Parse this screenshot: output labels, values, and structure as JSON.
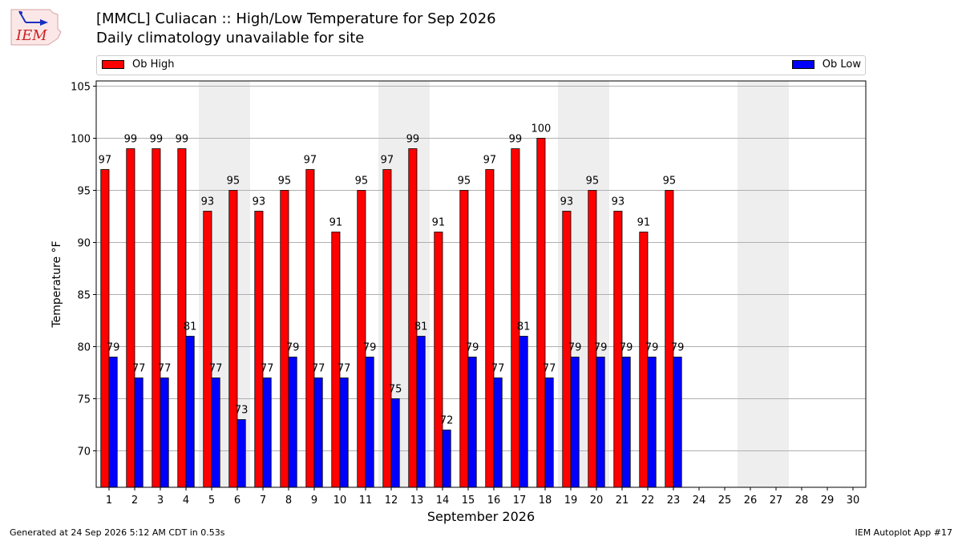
{
  "logo_text": "IEM",
  "title_line1": "[MMCL] Culiacan :: High/Low Temperature for Sep 2026",
  "title_line2": "Daily climatology unavailable for site",
  "footer_left": "Generated at 24 Sep 2026 5:12 AM CDT in 0.53s",
  "footer_right": "IEM Autoplot App #17",
  "colors": {
    "high": "#ff0000",
    "low": "#0000ff",
    "weekend": "#eeeeee",
    "grid": "#b0b0b0"
  },
  "chart_data": {
    "type": "bar",
    "xlabel": "September 2026",
    "ylabel": "Temperature °F",
    "ylim": [
      66.5,
      105.5
    ],
    "yticks": [
      70,
      75,
      80,
      85,
      90,
      95,
      100,
      105
    ],
    "categories": [
      "1",
      "2",
      "3",
      "4",
      "5",
      "6",
      "7",
      "8",
      "9",
      "10",
      "11",
      "12",
      "13",
      "14",
      "15",
      "16",
      "17",
      "18",
      "19",
      "20",
      "21",
      "22",
      "23",
      "24",
      "25",
      "26",
      "27",
      "28",
      "29",
      "30"
    ],
    "shaded_days": [
      [
        "5",
        "6"
      ],
      [
        "12",
        "13"
      ],
      [
        "19",
        "20"
      ],
      [
        "26",
        "27"
      ]
    ],
    "legend_position": "top",
    "grid": "horizontal",
    "series": [
      {
        "name": "Ob High",
        "color": "#ff0000",
        "values": [
          97,
          99,
          99,
          99,
          93,
          95,
          93,
          95,
          97,
          91,
          95,
          97,
          99,
          91,
          95,
          97,
          99,
          100,
          93,
          95,
          93,
          91,
          95,
          null,
          null,
          null,
          null,
          null,
          null,
          null
        ]
      },
      {
        "name": "Ob Low",
        "color": "#0000ff",
        "values": [
          79,
          77,
          77,
          81,
          77,
          73,
          77,
          79,
          77,
          77,
          79,
          75,
          81,
          72,
          79,
          77,
          81,
          77,
          79,
          79,
          79,
          79,
          79,
          null,
          null,
          null,
          null,
          null,
          null,
          null
        ]
      }
    ]
  }
}
